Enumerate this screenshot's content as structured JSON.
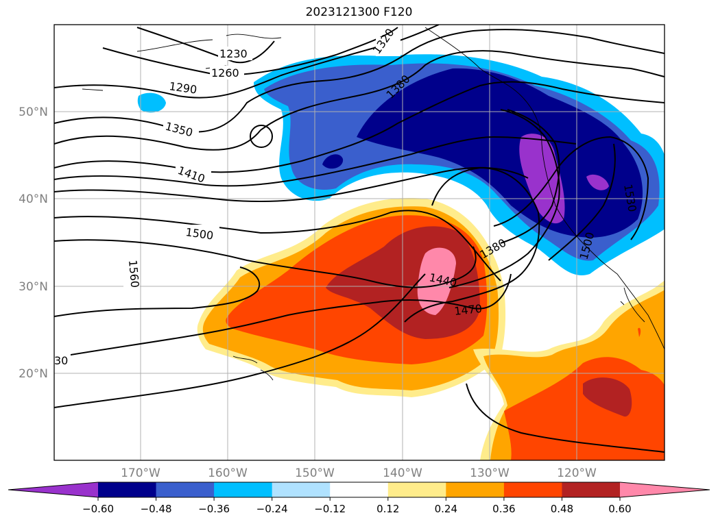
{
  "title": "2023121300 F120",
  "map": {
    "lat_ticks": [
      "50°N",
      "40°N",
      "30°N",
      "20°N"
    ],
    "lon_ticks": [
      "170°W",
      "160°W",
      "150°W",
      "140°W",
      "130°W",
      "120°W"
    ],
    "contour_labels": [
      "1230",
      "1260",
      "1290",
      "1320",
      "1350",
      "1380",
      "1410",
      "1440",
      "1470",
      "1500",
      "1530",
      "1560",
      "30"
    ]
  },
  "colorbar": {
    "ticks": [
      "−0.60",
      "−0.48",
      "−0.36",
      "−0.24",
      "−0.12",
      "0.12",
      "0.24",
      "0.36",
      "0.48",
      "0.60"
    ],
    "colors": [
      "#9932cc",
      "#00008b",
      "#3a5fcd",
      "#00bfff",
      "#b0e2ff",
      "#ffffff",
      "#ffec8b",
      "#ffa500",
      "#ff4500",
      "#b22222",
      "#ff88aa"
    ]
  }
}
